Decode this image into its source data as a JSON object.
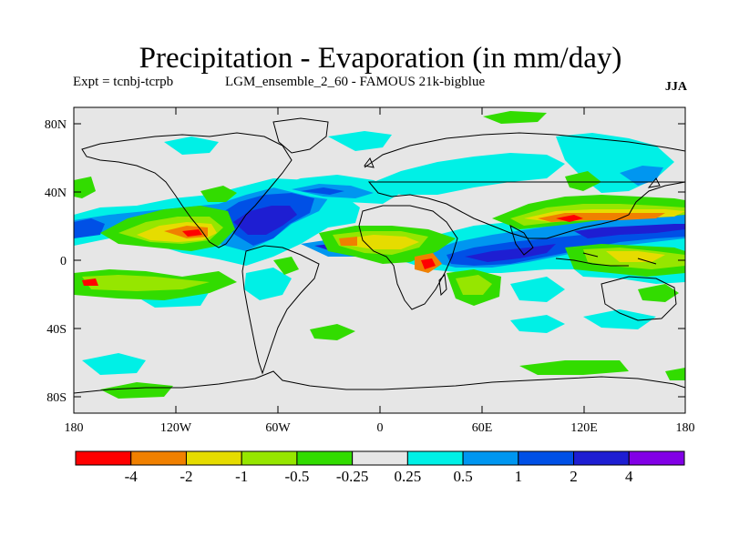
{
  "header": {
    "title": "Precipitation - Evaporation (in mm/day)",
    "experiment": "Expt = tcnbj-tcrpb",
    "ensemble": "LGM_ensemble_2_60 - FAMOUS 21k-bigblue",
    "season": "JJA"
  },
  "map": {
    "lat_labels": [
      "80N",
      "40N",
      "0",
      "40S",
      "80S"
    ],
    "lon_labels": [
      "180",
      "120W",
      "60W",
      "0",
      "60E",
      "120E",
      "180"
    ],
    "background_color": "#e6e6e6"
  },
  "colorbar": {
    "colors": [
      "#ff0000",
      "#f08000",
      "#e6dc00",
      "#96e600",
      "#32dc00",
      "#e6e6e6",
      "#00f0e6",
      "#0096f0",
      "#0050e6",
      "#1e1ed2",
      "#8200e6"
    ],
    "labels": [
      "-4",
      "-2",
      "-1",
      "-0.5",
      "-0.25",
      "0.25",
      "0.5",
      "1",
      "2",
      "4"
    ]
  },
  "chart_data": {
    "type": "heatmap",
    "title": "Precipitation - Evaporation (in mm/day)",
    "units": "mm/day",
    "season": "JJA",
    "projection": "cylindrical equidistant",
    "xlim": [
      -180,
      180
    ],
    "ylim": [
      -90,
      90
    ],
    "contour_levels": [
      -4,
      -2,
      -1,
      -0.5,
      -0.25,
      0.25,
      0.5,
      1,
      2,
      4
    ]
  }
}
